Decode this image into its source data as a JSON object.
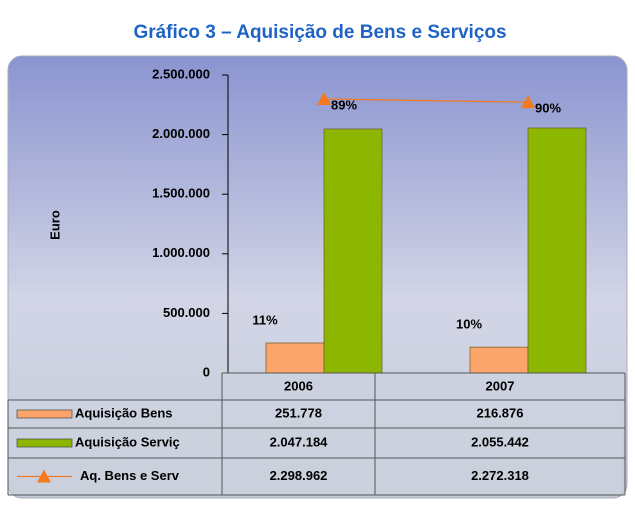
{
  "chart_data": {
    "type": "bar",
    "title": "Gráfico 3 – Aquisição de Bens e Serviços",
    "ylabel": "Euro",
    "categories": [
      "2006",
      "2007"
    ],
    "series": [
      {
        "name": "Aquisição Bens",
        "type": "bar",
        "color": "#fba56b",
        "values": [
          251778,
          216876
        ],
        "value_labels": [
          "251.778",
          "216.876"
        ],
        "percent_labels": [
          "11%",
          "10%"
        ]
      },
      {
        "name": "Aquisição Serviç",
        "type": "bar",
        "color": "#8db600",
        "values": [
          2047184,
          2055442
        ],
        "value_labels": [
          "2.047.184",
          "2.055.442"
        ],
        "percent_labels": [
          "89%",
          "90%"
        ]
      },
      {
        "name": "Aq. Bens e Serv",
        "type": "line",
        "color": "#f47a20",
        "values": [
          2298962,
          2272318
        ],
        "value_labels": [
          "2.298.962",
          "2.272.318"
        ]
      }
    ],
    "ylim": [
      0,
      2500000
    ],
    "yticks": [
      0,
      {
        "value": 500000,
        "label": "500.000"
      },
      {
        "value": 1000000,
        "label": "1.000.000"
      },
      {
        "value": 1500000,
        "label": "1.500.000"
      },
      {
        "value": 2000000,
        "label": "2.000.000"
      },
      {
        "value": 2500000,
        "label": "2.500.000"
      }
    ],
    "grid": false
  }
}
